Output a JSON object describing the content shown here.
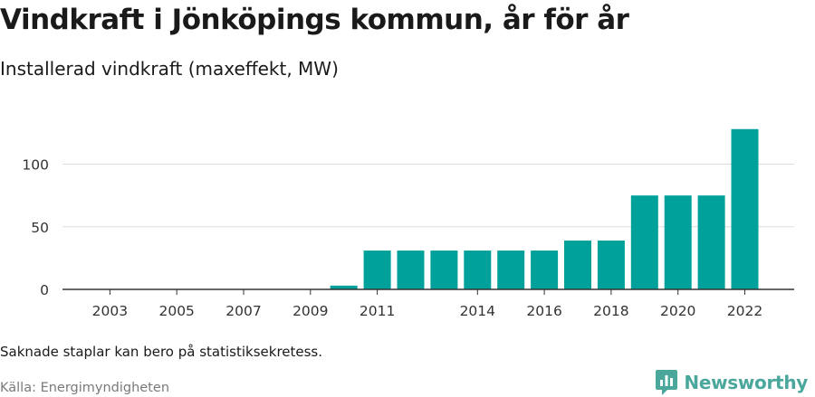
{
  "header": {
    "title": "Vindkraft i Jönköpings kommun, år för år",
    "subtitle": "Installerad vindkraft (maxeffekt, MW)"
  },
  "footer": {
    "note": "Saknade staplar kan bero på statistiksekretess.",
    "source": "Källa: Energimyndigheten",
    "brand": "Newsworthy"
  },
  "colors": {
    "bar": "#00a19a",
    "grid": "#dddddd",
    "axis": "#333333",
    "brand": "#4aa79c"
  },
  "chart_data": {
    "type": "bar",
    "title": "Vindkraft i Jönköpings kommun, år för år",
    "subtitle": "Installerad vindkraft (maxeffekt, MW)",
    "categories": [
      2002,
      2003,
      2004,
      2005,
      2006,
      2007,
      2008,
      2009,
      2010,
      2011,
      2012,
      2013,
      2014,
      2015,
      2016,
      2017,
      2018,
      2019,
      2020,
      2021,
      2022
    ],
    "values": [
      0,
      0,
      0,
      0,
      0,
      0,
      0,
      0,
      3,
      31,
      31,
      31,
      31,
      31,
      31,
      39,
      39,
      75,
      75,
      75,
      128
    ],
    "x_tick_labels": [
      "2003",
      "2005",
      "2007",
      "2009",
      "2011",
      "2014",
      "2016",
      "2018",
      "2020",
      "2022"
    ],
    "x_tick_years": [
      2003,
      2005,
      2007,
      2009,
      2011,
      2014,
      2016,
      2018,
      2020,
      2022
    ],
    "y_ticks": [
      0,
      50,
      100
    ],
    "ylim": [
      0,
      130
    ],
    "xlabel": "",
    "ylabel": "",
    "grid": true,
    "legend": "none"
  }
}
